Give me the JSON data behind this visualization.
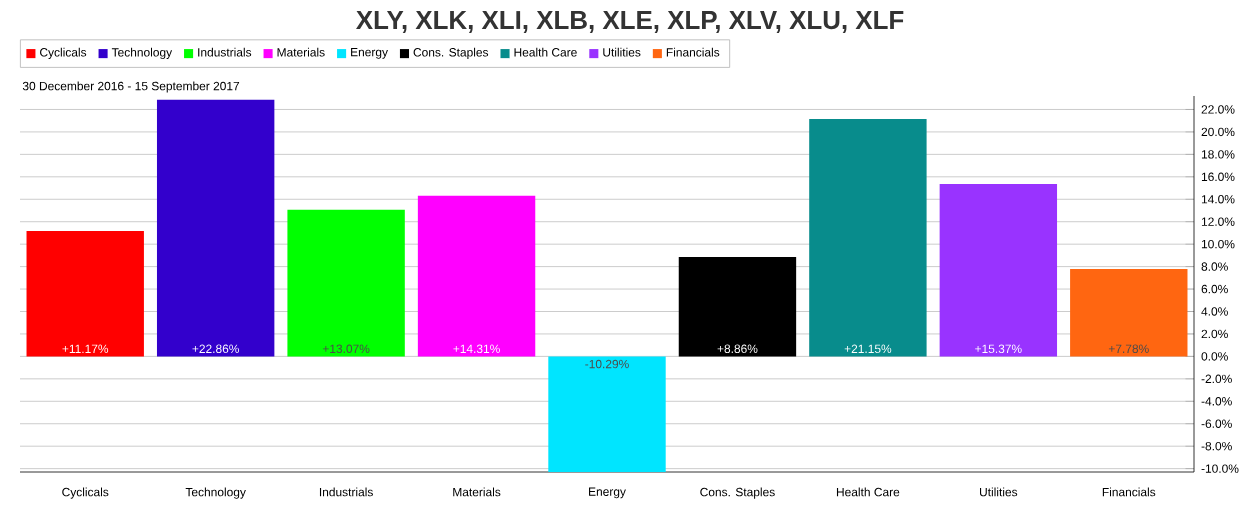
{
  "chart_data": {
    "type": "bar",
    "title": "XLY, XLK, XLI, XLB, XLE, XLP, XLV, XLU, XLF",
    "subtitle": "30 December 2016 - 15 September 2017",
    "categories": [
      "Cyclicals",
      "Technology",
      "Industrials",
      "Materials",
      "Energy",
      "Cons. Staples",
      "Health Care",
      "Utilities",
      "Financials"
    ],
    "series": [
      {
        "name": "Cyclicals",
        "color": "#ff0000",
        "values": [
          11.17,
          null,
          null,
          null,
          null,
          null,
          null,
          null,
          null
        ],
        "value_labels": [
          "+11.17%",
          null,
          null,
          null,
          null,
          null,
          null,
          null,
          null
        ]
      },
      {
        "name": "Technology",
        "color": "#3300cc",
        "values": [
          null,
          22.86,
          null,
          null,
          null,
          null,
          null,
          null,
          null
        ],
        "value_labels": [
          null,
          "+22.86%",
          null,
          null,
          null,
          null,
          null,
          null,
          null
        ]
      },
      {
        "name": "Industrials",
        "color": "#00ff00",
        "values": [
          null,
          null,
          13.07,
          null,
          null,
          null,
          null,
          null,
          null
        ],
        "value_labels": [
          null,
          null,
          "+13.07%",
          null,
          null,
          null,
          null,
          null,
          null
        ]
      },
      {
        "name": "Materials",
        "color": "#ff00ff",
        "values": [
          null,
          null,
          null,
          14.31,
          null,
          null,
          null,
          null,
          null
        ],
        "value_labels": [
          null,
          null,
          null,
          "+14.31%",
          null,
          null,
          null,
          null,
          null
        ]
      },
      {
        "name": "Energy",
        "color": "#00e5ff",
        "values": [
          null,
          null,
          null,
          null,
          -10.29,
          null,
          null,
          null,
          null
        ],
        "value_labels": [
          null,
          null,
          null,
          null,
          "-10.29%",
          null,
          null,
          null,
          null
        ]
      },
      {
        "name": "Cons. Staples",
        "color": "#000000",
        "values": [
          null,
          null,
          null,
          null,
          null,
          8.86,
          null,
          null,
          null
        ],
        "value_labels": [
          null,
          null,
          null,
          null,
          null,
          "+8.86%",
          null,
          null,
          null
        ]
      },
      {
        "name": "Health Care",
        "color": "#088c8c",
        "values": [
          null,
          null,
          null,
          null,
          null,
          null,
          21.15,
          null,
          null
        ],
        "value_labels": [
          null,
          null,
          null,
          null,
          null,
          null,
          "+21.15%",
          null,
          null
        ]
      },
      {
        "name": "Utilities",
        "color": "#9933ff",
        "values": [
          null,
          null,
          null,
          null,
          null,
          null,
          null,
          15.37,
          null
        ],
        "value_labels": [
          null,
          null,
          null,
          null,
          null,
          null,
          null,
          "+15.37%",
          null
        ]
      },
      {
        "name": "Financials",
        "color": "#ff6611",
        "values": [
          null,
          null,
          null,
          null,
          null,
          null,
          null,
          null,
          7.78
        ],
        "value_labels": [
          null,
          null,
          null,
          null,
          null,
          null,
          null,
          null,
          "+7.78%"
        ]
      }
    ],
    "ylim": [
      -10.3,
      23.2
    ],
    "yticks": [
      {
        "value": -10,
        "label": "-10.0%"
      },
      {
        "value": -8,
        "label": "-8.0%"
      },
      {
        "value": -6,
        "label": "-6.0%"
      },
      {
        "value": -4,
        "label": "-4.0%"
      },
      {
        "value": -2,
        "label": "-2.0%"
      },
      {
        "value": 0,
        "label": "0.0%"
      },
      {
        "value": 2,
        "label": "2.0%"
      },
      {
        "value": 4,
        "label": "4.0%"
      },
      {
        "value": 6,
        "label": "6.0%"
      },
      {
        "value": 8,
        "label": "8.0%"
      },
      {
        "value": 10,
        "label": "10.0%"
      },
      {
        "value": 12,
        "label": "12.0%"
      },
      {
        "value": 14,
        "label": "14.0%"
      },
      {
        "value": 16,
        "label": "16.0%"
      },
      {
        "value": 18,
        "label": "18.0%"
      },
      {
        "value": 20,
        "label": "20.0%"
      },
      {
        "value": 22,
        "label": "22.0%"
      }
    ],
    "grid": "y",
    "legend": "top left"
  }
}
